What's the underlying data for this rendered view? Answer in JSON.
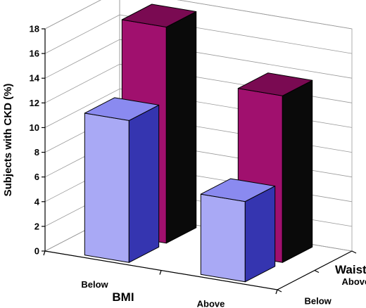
{
  "chart_data": {
    "type": "bar",
    "subtype": "3d-grouped",
    "title": "",
    "ylabel": "Subjects with CKD (%)",
    "xlabel": "BMI",
    "zlabel": "Waist",
    "x_categories": [
      "Below",
      "Above"
    ],
    "z_categories": [
      "Below",
      "Above"
    ],
    "y_ticks": [
      0,
      2,
      4,
      6,
      8,
      10,
      12,
      14,
      16,
      18
    ],
    "ylim": [
      0,
      18
    ],
    "grid": true,
    "colors": {
      "waist_below_front": "#a9a9f5",
      "waist_below_side": "#3535b0",
      "waist_below_top": "#8a8af0",
      "waist_above_front": "#a0106e",
      "waist_above_side": "#0a0a0a",
      "waist_above_top": "#7a0a52"
    },
    "series": [
      {
        "waist": "Below",
        "values": [
          11.5,
          6.5
        ]
      },
      {
        "waist": "Above",
        "values": [
          17.5,
          13.5
        ]
      }
    ]
  }
}
